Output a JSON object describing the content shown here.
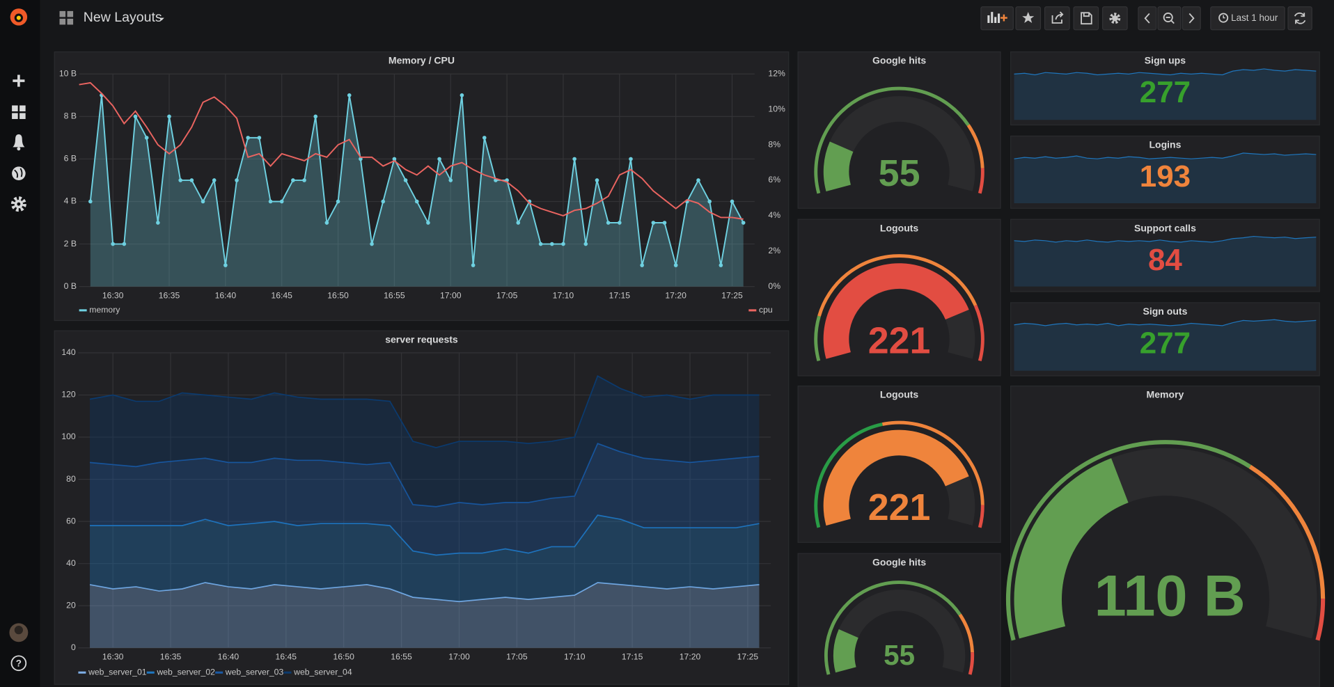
{
  "header": {
    "title": "New Layouts",
    "time_range": "Last 1 hour"
  },
  "panels": [
    {
      "type": "graph",
      "title": "Memory / CPU",
      "xlim": [
        "16:27",
        "17:27"
      ],
      "xticks": [
        "16:30",
        "16:35",
        "16:40",
        "16:45",
        "16:50",
        "16:55",
        "17:00",
        "17:05",
        "17:10",
        "17:15",
        "17:20",
        "17:25"
      ],
      "ylim": [
        0,
        10
      ],
      "yticks": [
        {
          "value": 0,
          "label": "0 B"
        },
        {
          "value": 2,
          "label": "2 B"
        },
        {
          "value": 4,
          "label": "4 B"
        },
        {
          "value": 6,
          "label": "6 B"
        },
        {
          "value": 8,
          "label": "8 B"
        },
        {
          "value": 10,
          "label": "10 B"
        }
      ],
      "y2lim": [
        0,
        12
      ],
      "y2ticks": [
        {
          "value": 0,
          "label": "0%"
        },
        {
          "value": 2,
          "label": "2%"
        },
        {
          "value": 4,
          "label": "4%"
        },
        {
          "value": 6,
          "label": "6%"
        },
        {
          "value": 8,
          "label": "8%"
        },
        {
          "value": 10,
          "label": "10%"
        },
        {
          "value": 12,
          "label": "12%"
        }
      ],
      "grid": true,
      "series": [
        {
          "name": "memory",
          "color": "#6ed0e0",
          "fill": true,
          "points": true,
          "x": [
            "16:28",
            "16:29",
            "16:30",
            "16:31",
            "16:32",
            "16:33",
            "16:34",
            "16:35",
            "16:36",
            "16:37",
            "16:38",
            "16:39",
            "16:40",
            "16:41",
            "16:42",
            "16:43",
            "16:44",
            "16:45",
            "16:46",
            "16:47",
            "16:48",
            "16:49",
            "16:50",
            "16:51",
            "16:52",
            "16:53",
            "16:54",
            "16:55",
            "16:56",
            "16:57",
            "16:58",
            "16:59",
            "17:00",
            "17:01",
            "17:02",
            "17:03",
            "17:04",
            "17:05",
            "17:06",
            "17:07",
            "17:08",
            "17:09",
            "17:10",
            "17:11",
            "17:12",
            "17:13",
            "17:14",
            "17:15",
            "17:16",
            "17:17",
            "17:18",
            "17:19",
            "17:20",
            "17:21",
            "17:22",
            "17:23",
            "17:24",
            "17:25",
            "17:26"
          ],
          "values": [
            4,
            9,
            2,
            2,
            8,
            7,
            3,
            8,
            5,
            5,
            4,
            5,
            1,
            5,
            7,
            7,
            4,
            4,
            5,
            5,
            8,
            3,
            4,
            9,
            6,
            2,
            4,
            6,
            5,
            4,
            3,
            6,
            5,
            9,
            1,
            7,
            5,
            5,
            3,
            4,
            2,
            2,
            2,
            6,
            2,
            5,
            3,
            3,
            6,
            1,
            3,
            3,
            1,
            4,
            5,
            4,
            1,
            4,
            3
          ]
        },
        {
          "name": "cpu",
          "color": "#ea6460",
          "axis": "y2",
          "x": [
            "16:27",
            "16:28",
            "16:29",
            "16:30",
            "16:31",
            "16:32",
            "16:33",
            "16:34",
            "16:35",
            "16:36",
            "16:37",
            "16:38",
            "16:39",
            "16:40",
            "16:41",
            "16:42",
            "16:43",
            "16:44",
            "16:45",
            "16:46",
            "16:47",
            "16:48",
            "16:49",
            "16:50",
            "16:51",
            "16:52",
            "16:53",
            "16:54",
            "16:55",
            "16:56",
            "16:57",
            "16:58",
            "16:59",
            "17:00",
            "17:01",
            "17:02",
            "17:03",
            "17:04",
            "17:05",
            "17:06",
            "17:07",
            "17:08",
            "17:09",
            "17:10",
            "17:11",
            "17:12",
            "17:13",
            "17:14",
            "17:15",
            "17:16",
            "17:17",
            "17:18",
            "17:19",
            "17:20",
            "17:21",
            "17:22",
            "17:23",
            "17:24",
            "17:25",
            "17:26"
          ],
          "values": [
            11.4,
            11.5,
            10.9,
            10.2,
            9.2,
            9.9,
            9,
            8,
            7.5,
            8,
            9,
            10.4,
            10.7,
            10.2,
            9.5,
            7.3,
            7.5,
            6.8,
            7.5,
            7.3,
            7.1,
            7.5,
            7.3,
            8,
            8.3,
            7.3,
            7.3,
            6.8,
            7.1,
            6.6,
            6.3,
            6.8,
            6.3,
            6.8,
            7,
            6.6,
            6.3,
            6.1,
            5.9,
            5.4,
            4.7,
            4.4,
            4.2,
            4,
            4.3,
            4.4,
            4.7,
            5.1,
            6.3,
            6.6,
            6.1,
            5.4,
            4.9,
            4.4,
            4.9,
            4.7,
            4.2,
            3.9,
            3.9,
            3.8
          ]
        }
      ]
    },
    {
      "type": "stacked_area",
      "title": "server requests",
      "xlim": [
        "16:27",
        "17:27"
      ],
      "xticks": [
        "16:30",
        "16:35",
        "16:40",
        "16:45",
        "16:50",
        "16:55",
        "17:00",
        "17:05",
        "17:10",
        "17:15",
        "17:20",
        "17:25"
      ],
      "ylim": [
        0,
        140
      ],
      "yticks": [
        0,
        20,
        40,
        60,
        80,
        100,
        120,
        140
      ],
      "grid": true,
      "x": [
        "16:28",
        "16:30",
        "16:32",
        "16:34",
        "16:36",
        "16:38",
        "16:40",
        "16:42",
        "16:44",
        "16:46",
        "16:48",
        "16:50",
        "16:52",
        "16:54",
        "16:56",
        "16:58",
        "17:00",
        "17:02",
        "17:04",
        "17:06",
        "17:08",
        "17:10",
        "17:12",
        "17:14",
        "17:16",
        "17:18",
        "17:20",
        "17:22",
        "17:24",
        "17:26"
      ],
      "series": [
        {
          "name": "web_server_01",
          "color": "#7eaee6",
          "values": [
            30,
            28,
            29,
            27,
            28,
            31,
            29,
            28,
            30,
            29,
            28,
            29,
            30,
            28,
            24,
            23,
            22,
            23,
            24,
            23,
            24,
            25,
            31,
            30,
            29,
            28,
            29,
            28,
            29,
            30
          ]
        },
        {
          "name": "web_server_02",
          "color": "#1f78c1",
          "values": [
            28,
            30,
            29,
            31,
            30,
            30,
            29,
            31,
            30,
            29,
            31,
            30,
            29,
            30,
            22,
            21,
            23,
            22,
            23,
            22,
            24,
            23,
            32,
            31,
            28,
            29,
            28,
            29,
            28,
            29
          ]
        },
        {
          "name": "web_server_03",
          "color": "#1a5aa5",
          "values": [
            30,
            29,
            28,
            30,
            31,
            29,
            30,
            29,
            30,
            31,
            30,
            29,
            28,
            30,
            22,
            23,
            24,
            23,
            22,
            24,
            23,
            24,
            34,
            32,
            33,
            32,
            31,
            32,
            33,
            32
          ]
        },
        {
          "name": "web_server_04",
          "color": "#0b3a6e",
          "values": [
            30,
            33,
            31,
            29,
            32,
            30,
            31,
            30,
            31,
            30,
            29,
            30,
            31,
            29,
            30,
            28,
            29,
            30,
            29,
            28,
            27,
            28,
            32,
            30,
            29,
            31,
            30,
            31,
            30,
            29
          ]
        }
      ]
    },
    {
      "type": "gauge",
      "title": "Google hits",
      "value": 55,
      "min": 0,
      "max": 300,
      "thresholds": [
        {
          "value": 0,
          "color": "#629e51"
        },
        {
          "value": 230,
          "color": "#ef843c"
        },
        {
          "value": 275,
          "color": "#e24d42"
        }
      ]
    },
    {
      "type": "gauge",
      "title": "Logouts",
      "value": 221,
      "min": 0,
      "max": 270,
      "thresholds": [
        {
          "value": 0,
          "color": "#629e51"
        },
        {
          "value": 40,
          "color": "#ef843c"
        },
        {
          "value": 220,
          "color": "#e24d42"
        }
      ]
    },
    {
      "type": "gauge",
      "title": "Logouts",
      "value": 221,
      "min": 0,
      "max": 270,
      "thresholds": [
        {
          "value": 0,
          "color": "#299c46"
        },
        {
          "value": 120,
          "color": "#ef843c"
        },
        {
          "value": 250,
          "color": "#e24d42"
        }
      ]
    },
    {
      "type": "gauge",
      "title": "Google hits",
      "value": 55,
      "min": 0,
      "max": 300,
      "thresholds": [
        {
          "value": 0,
          "color": "#629e51"
        },
        {
          "value": 230,
          "color": "#ef843c"
        },
        {
          "value": 275,
          "color": "#e24d42"
        }
      ]
    },
    {
      "type": "singlestat",
      "title": "Sign ups",
      "value": 277,
      "color": "#37a02c",
      "sparkline": [
        62,
        63,
        61,
        64,
        63,
        62,
        64,
        63,
        61,
        62,
        63,
        62,
        64,
        63,
        62,
        61,
        63,
        62,
        63,
        62,
        61,
        66,
        68,
        67,
        69,
        67,
        66,
        68,
        67,
        66
      ]
    },
    {
      "type": "singlestat",
      "title": "Logins",
      "value": 193,
      "color": "#ef843c",
      "sparkline": [
        61,
        63,
        62,
        64,
        62,
        63,
        65,
        62,
        61,
        63,
        62,
        64,
        63,
        61,
        62,
        63,
        62,
        61,
        62,
        63,
        62,
        65,
        69,
        68,
        67,
        68,
        66,
        67,
        68,
        67
      ]
    },
    {
      "type": "singlestat",
      "title": "Support calls",
      "value": 84,
      "color": "#e24d42",
      "sparkline": [
        63,
        62,
        64,
        63,
        61,
        63,
        62,
        64,
        62,
        61,
        63,
        62,
        63,
        62,
        64,
        62,
        61,
        63,
        62,
        61,
        63,
        66,
        67,
        69,
        68,
        67,
        68,
        66,
        67,
        68
      ]
    },
    {
      "type": "singlestat",
      "title": "Sign outs",
      "value": 277,
      "color": "#37a02c",
      "sparkline": [
        62,
        64,
        63,
        61,
        63,
        64,
        62,
        63,
        62,
        64,
        61,
        63,
        62,
        63,
        62,
        61,
        62,
        64,
        63,
        62,
        61,
        65,
        68,
        67,
        68,
        69,
        67,
        66,
        67,
        68
      ]
    },
    {
      "type": "gauge",
      "title": "Memory",
      "value": 110,
      "value_label": "110 B",
      "min": 0,
      "max": 275,
      "thresholds": [
        {
          "value": 0,
          "color": "#629e51"
        },
        {
          "value": 180,
          "color": "#ef843c"
        },
        {
          "value": 255,
          "color": "#e24d42"
        }
      ]
    }
  ]
}
